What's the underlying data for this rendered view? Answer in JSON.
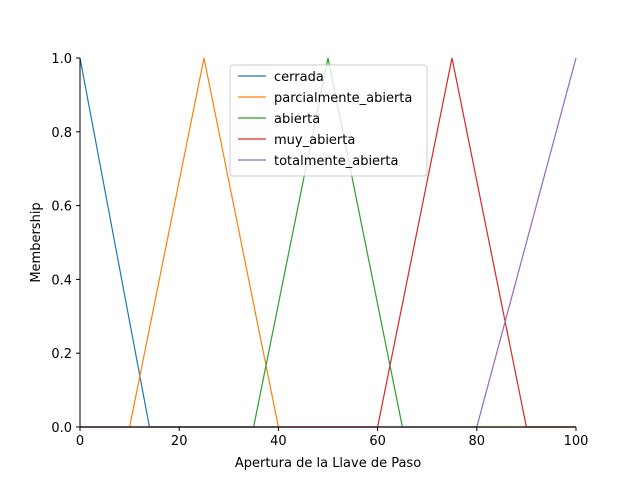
{
  "chart_data": {
    "type": "line",
    "xlabel": "Apertura de la Llave de Paso",
    "ylabel": "Membership",
    "xlim": [
      0,
      100
    ],
    "ylim": [
      0,
      1.0
    ],
    "xticks": [
      0,
      20,
      40,
      60,
      80,
      100
    ],
    "yticks": [
      0.0,
      0.2,
      0.4,
      0.6,
      0.8,
      1.0
    ],
    "ytick_labels": [
      "0.0",
      "0.2",
      "0.4",
      "0.6",
      "0.8",
      "1.0"
    ],
    "legend_position": "top-center",
    "grid": false,
    "series": [
      {
        "name": "cerrada",
        "color": "#1f77b4",
        "points": [
          [
            0,
            1.0
          ],
          [
            14,
            0
          ],
          [
            100,
            0
          ]
        ]
      },
      {
        "name": "parcialmente_abierta",
        "color": "#ff7f0e",
        "points": [
          [
            0,
            0
          ],
          [
            10,
            0
          ],
          [
            25,
            1.0
          ],
          [
            40,
            0
          ],
          [
            100,
            0
          ]
        ]
      },
      {
        "name": "abierta",
        "color": "#2ca02c",
        "points": [
          [
            0,
            0
          ],
          [
            35,
            0
          ],
          [
            50,
            1.0
          ],
          [
            65,
            0
          ],
          [
            100,
            0
          ]
        ]
      },
      {
        "name": "muy_abierta",
        "color": "#d62728",
        "points": [
          [
            0,
            0
          ],
          [
            60,
            0
          ],
          [
            75,
            1.0
          ],
          [
            90,
            0
          ],
          [
            100,
            0
          ]
        ]
      },
      {
        "name": "totalmente_abierta",
        "color": "#9467bd",
        "points": [
          [
            0,
            0
          ],
          [
            80,
            0
          ],
          [
            100,
            1.0
          ]
        ]
      }
    ]
  }
}
